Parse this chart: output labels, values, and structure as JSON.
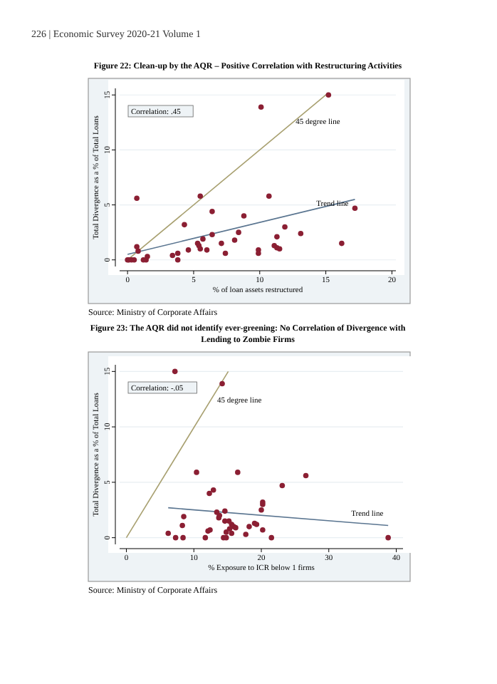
{
  "chart_data": [
    {
      "type": "scatter",
      "title": "Figure 22: Clean-up by the AQR – Positive Correlation with Restructuring Activities",
      "xlabel": "% of loan assets restructured",
      "ylabel": "Total Divergence as a % of Total Loans",
      "annotations": [
        "226 | Economic Survey 2020-21 Volume 1",
        "Correlation: .45",
        "Source: Ministry of Corporate Affairs"
      ],
      "xlim": [
        -0.6,
        20.3
      ],
      "ylim": [
        -0.6,
        15.6
      ],
      "xticks": [
        0,
        5,
        10,
        15,
        20
      ],
      "yticks": [
        0,
        5,
        10,
        15
      ],
      "grid": "y",
      "series": [
        {
          "color": "#8b1f33",
          "marker": "circle",
          "x": [
            15.2,
            10.1,
            0.7,
            5.5,
            10.7,
            6.4,
            8.8,
            17.2,
            4.3,
            11.9,
            8.4,
            6.4,
            13.1,
            11.3,
            5.7,
            8.1,
            7.1,
            5.3,
            5.4,
            5.5,
            11.1,
            11.3,
            11.5,
            16.2,
            0.7,
            0.8,
            4.6,
            6,
            9.9,
            9.9,
            7.4,
            3.8,
            3.4,
            3.8,
            1.5,
            1.4,
            1.2,
            0,
            0.1,
            0.3,
            0.5
          ],
          "values": [
            15,
            13.9,
            5.6,
            5.8,
            5.8,
            4.4,
            4,
            4.7,
            3.2,
            3,
            2.5,
            2.3,
            2.4,
            2.1,
            1.9,
            1.8,
            1.5,
            1.5,
            1.3,
            1,
            1.3,
            1.1,
            1,
            1.5,
            1.2,
            0.8,
            0.9,
            0.9,
            0.9,
            0.6,
            0.6,
            0.6,
            0.4,
            0,
            0.3,
            0,
            0,
            0,
            0,
            0,
            0
          ]
        },
        {
          "type": "line",
          "name": "45 degree line",
          "color": "#a8a070",
          "x": [
            0,
            15.2
          ],
          "values": [
            0,
            15.2
          ]
        },
        {
          "type": "line",
          "name": "Trend line",
          "color": "#5a7590",
          "x": [
            0,
            17.2
          ],
          "values": [
            0.5,
            5.5
          ]
        }
      ]
    },
    {
      "type": "scatter",
      "title": "Figure 23: The AQR did not identify ever-greening: No Correlation of Divergence with Lending to Zombie Firms",
      "xlabel": "% Exposure to ICR below 1 firms",
      "ylabel": "Total Divergence as a % of Total Loans",
      "annotations": [
        "Correlation: -.05",
        "Source: Ministry of Corporate Affairs"
      ],
      "xlim": [
        -1,
        41
      ],
      "ylim": [
        -0.6,
        15.6
      ],
      "xticks": [
        0,
        10,
        20,
        30,
        40
      ],
      "yticks": [
        0,
        5,
        10,
        15
      ],
      "grid": "y",
      "series": [
        {
          "color": "#8b1f33",
          "marker": "circle",
          "x": [
            7.2,
            14.2,
            10.4,
            16.5,
            26.6,
            23.1,
            12.9,
            12.3,
            20.2,
            20.2,
            20,
            13.4,
            14.6,
            13.8,
            13.7,
            8.5,
            14.6,
            15.2,
            15.6,
            15.9,
            16.2,
            15.3,
            19,
            19.3,
            18.2,
            8.3,
            12.4,
            12.1,
            20.2,
            14.8,
            15.6,
            17.7,
            6.2,
            7.3,
            8.4,
            11.7,
            14.4,
            14.8,
            21.5,
            38.8
          ],
          "values": [
            15,
            13.9,
            5.9,
            5.9,
            5.6,
            4.7,
            4.3,
            4,
            3.2,
            3,
            2.5,
            2.3,
            2.4,
            2,
            1.8,
            1.9,
            1.5,
            1.5,
            1.2,
            1,
            0.9,
            0.8,
            1.3,
            1.2,
            1,
            1.1,
            0.7,
            0.6,
            0.7,
            0.5,
            0.4,
            0.3,
            0.4,
            0,
            0,
            0,
            0,
            0,
            0,
            0
          ]
        },
        {
          "type": "line",
          "name": "45 degree line",
          "color": "#a8a070",
          "x": [
            0,
            15.1
          ],
          "values": [
            0,
            15
          ]
        },
        {
          "type": "line",
          "name": "Trend line",
          "color": "#5a7590",
          "x": [
            6.2,
            38.8
          ],
          "values": [
            2.7,
            1.1
          ]
        }
      ]
    }
  ]
}
